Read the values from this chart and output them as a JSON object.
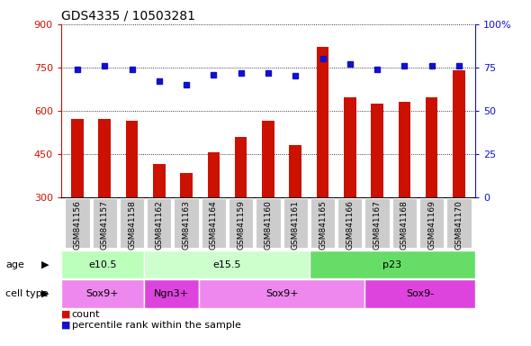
{
  "title": "GDS4335 / 10503281",
  "samples": [
    "GSM841156",
    "GSM841157",
    "GSM841158",
    "GSM841162",
    "GSM841163",
    "GSM841164",
    "GSM841159",
    "GSM841160",
    "GSM841161",
    "GSM841165",
    "GSM841166",
    "GSM841167",
    "GSM841168",
    "GSM841169",
    "GSM841170"
  ],
  "counts": [
    570,
    570,
    565,
    415,
    385,
    455,
    510,
    565,
    480,
    820,
    645,
    625,
    630,
    645,
    740
  ],
  "percentiles": [
    74,
    76,
    74,
    67,
    65,
    71,
    72,
    72,
    70,
    80,
    77,
    74,
    76,
    76,
    76
  ],
  "age_groups": [
    {
      "label": "e10.5",
      "start": 0,
      "end": 3,
      "color": "#bbffbb"
    },
    {
      "label": "e15.5",
      "start": 3,
      "end": 9,
      "color": "#ccffcc"
    },
    {
      "label": "p23",
      "start": 9,
      "end": 15,
      "color": "#66dd66"
    }
  ],
  "cell_type_groups": [
    {
      "label": "Sox9+",
      "start": 0,
      "end": 3,
      "color": "#ee88ee"
    },
    {
      "label": "Ngn3+",
      "start": 3,
      "end": 5,
      "color": "#dd44dd"
    },
    {
      "label": "Sox9+",
      "start": 5,
      "end": 11,
      "color": "#ee88ee"
    },
    {
      "label": "Sox9-",
      "start": 11,
      "end": 15,
      "color": "#dd44dd"
    }
  ],
  "bar_color": "#cc1100",
  "dot_color": "#1111cc",
  "left_ylim": [
    300,
    900
  ],
  "left_yticks": [
    300,
    450,
    600,
    750,
    900
  ],
  "right_ylim": [
    0,
    100
  ],
  "right_yticks": [
    0,
    25,
    50,
    75,
    100
  ],
  "right_yticklabels": [
    "0",
    "25",
    "50",
    "75",
    "100%"
  ],
  "label_color_left": "#cc1100",
  "label_color_right": "#1111cc",
  "xticklabel_bg": "#cccccc"
}
